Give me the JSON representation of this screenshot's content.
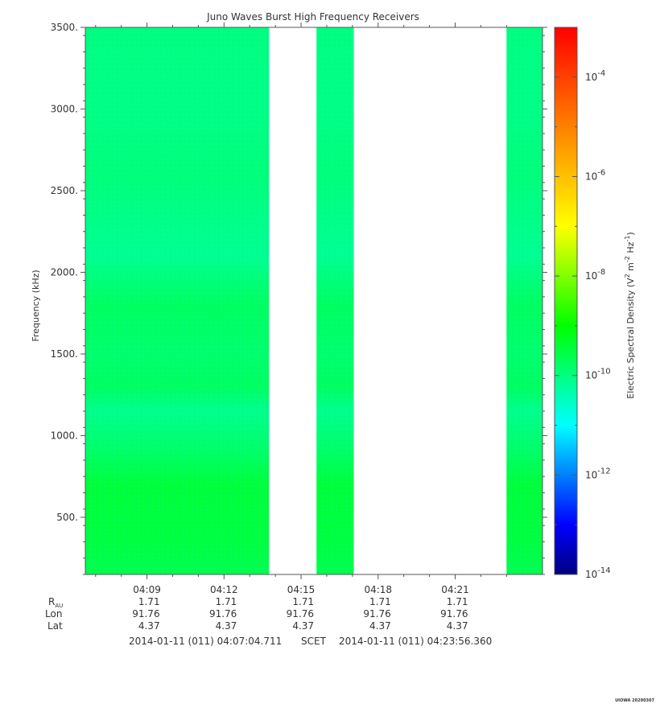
{
  "chart_data": {
    "type": "heatmap",
    "title": "Juno Waves Burst High Frequency Receivers",
    "ylabel": "Frequency (kHz)",
    "ylim": [
      150,
      3500
    ],
    "y_ticks": [
      {
        "value": 500,
        "label": "500."
      },
      {
        "value": 1000,
        "label": "1000."
      },
      {
        "value": 1500,
        "label": "1500."
      },
      {
        "value": 2000,
        "label": "2000."
      },
      {
        "value": 2500,
        "label": "2500."
      },
      {
        "value": 3000,
        "label": "3000."
      },
      {
        "value": 3500,
        "label": "3500."
      }
    ],
    "xlim_minutes": [
      246.6,
      264.4
    ],
    "x_ticks": [
      {
        "minute": 249,
        "label": "04:09"
      },
      {
        "minute": 252,
        "label": "04:12"
      },
      {
        "minute": 255,
        "label": "04:15"
      },
      {
        "minute": 258,
        "label": "04:18"
      },
      {
        "minute": 261,
        "label": "04:21"
      }
    ],
    "data_intervals_minutes": [
      [
        246.6,
        253.75
      ],
      [
        255.6,
        257.05
      ],
      [
        263.0,
        264.4
      ]
    ],
    "spectral_density_profile": [
      {
        "freq_khz": 200,
        "log10_value": -9.6
      },
      {
        "freq_khz": 350,
        "log10_value": -9.5
      },
      {
        "freq_khz": 700,
        "log10_value": -9.45
      },
      {
        "freq_khz": 900,
        "log10_value": -9.8
      },
      {
        "freq_khz": 1150,
        "log10_value": -10.1
      },
      {
        "freq_khz": 1300,
        "log10_value": -9.75
      },
      {
        "freq_khz": 1500,
        "log10_value": -9.85
      },
      {
        "freq_khz": 1800,
        "log10_value": -9.75
      },
      {
        "freq_khz": 2000,
        "log10_value": -10.0
      },
      {
        "freq_khz": 2100,
        "log10_value": -10.15
      },
      {
        "freq_khz": 2600,
        "log10_value": -9.95
      },
      {
        "freq_khz": 3000,
        "log10_value": -10.05
      },
      {
        "freq_khz": 3500,
        "log10_value": -10.0
      }
    ],
    "colorbar": {
      "label": "Electric Spectral Density (V",
      "label_sup1": "2",
      "label_mid": " m",
      "label_sup2": "-2",
      "label_mid2": " Hz",
      "label_sup3": "-1",
      "label_end": ")",
      "log_range": [
        -14,
        -3
      ],
      "ticks": [
        {
          "exp": -4,
          "base": "10",
          "sup": "-4"
        },
        {
          "exp": -6,
          "base": "10",
          "sup": "-6"
        },
        {
          "exp": -8,
          "base": "10",
          "sup": "-8"
        },
        {
          "exp": -10,
          "base": "10",
          "sup": "-10"
        },
        {
          "exp": -12,
          "base": "10",
          "sup": "-12"
        },
        {
          "exp": -14,
          "base": "10",
          "sup": "-14"
        }
      ],
      "colormap": [
        "#000080",
        "#0000ff",
        "#0080ff",
        "#00ffff",
        "#00ff80",
        "#00ff00",
        "#80ff00",
        "#ffff00",
        "#ffc000",
        "#ff8000",
        "#ff4000",
        "#ff0000"
      ]
    },
    "ephemeris": {
      "row_labels": {
        "rau": "R",
        "rau_sub": "AU",
        "lon": "Lon",
        "lat": "Lat"
      },
      "columns": [
        {
          "rau": "1.71",
          "lon": "91.76",
          "lat": "4.37"
        },
        {
          "rau": "1.71",
          "lon": "91.76",
          "lat": "4.37"
        },
        {
          "rau": "1.71",
          "lon": "91.76",
          "lat": "4.37"
        },
        {
          "rau": "1.71",
          "lon": "91.76",
          "lat": "4.37"
        },
        {
          "rau": "1.71",
          "lon": "91.76",
          "lat": "4.37"
        }
      ]
    },
    "time_range": {
      "start": "2014-01-11 (011) 04:07:04.711",
      "label": "SCET",
      "end": "2014-01-11 (011) 04:23:56.360"
    },
    "stamp": "UIOWA 20200307"
  }
}
